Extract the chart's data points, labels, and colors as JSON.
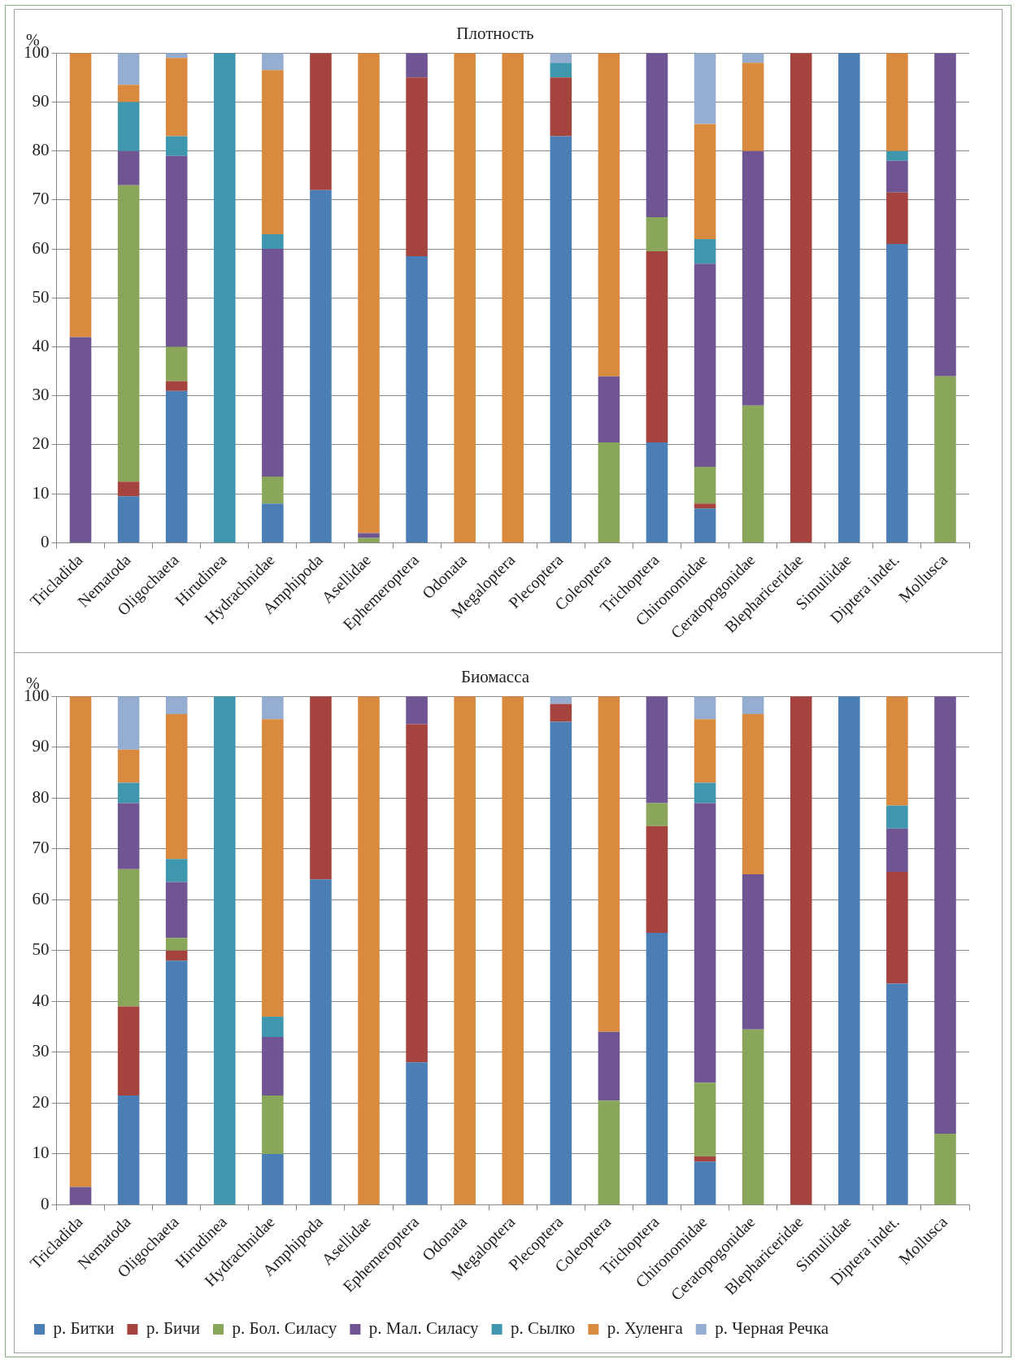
{
  "chart_data": [
    {
      "type": "bar",
      "title": "Плотность",
      "ylabel": "%",
      "stacked": true,
      "grid": "y",
      "legend": false,
      "ylim": [
        0,
        100
      ],
      "yticks": [
        0,
        10,
        20,
        30,
        40,
        50,
        60,
        70,
        80,
        90,
        100
      ],
      "categories": [
        "Tricladida",
        "Nematoda",
        "Oligochaeta",
        "Hirudinea",
        "Hydrachnidae",
        "Amphipoda",
        "Asellidae",
        "Ephemeroptera",
        "Odonata",
        "Megaloptera",
        "Plecoptera",
        "Coleoptera",
        "Trichoptera",
        "Chironomidae",
        "Ceratopogonidae",
        "Blephariceridae",
        "Simuliidae",
        "Diptera indet.",
        "Mollusca"
      ],
      "series": [
        {
          "color": "#4a7eb5",
          "values": [
            0,
            9.5,
            31,
            0,
            8,
            72,
            0,
            58.5,
            0,
            0,
            83,
            0,
            20.5,
            7,
            0,
            0,
            100,
            61,
            0
          ]
        },
        {
          "color": "#a5433f",
          "values": [
            0,
            3,
            2,
            0,
            0,
            28,
            0,
            36.5,
            0,
            0,
            12,
            0,
            39,
            1,
            0,
            100,
            0,
            10.5,
            0
          ]
        },
        {
          "color": "#8aa65a",
          "values": [
            0,
            60.5,
            7,
            0,
            5.5,
            0,
            1,
            0,
            0,
            0,
            0,
            20.5,
            7,
            7.5,
            28,
            0,
            0,
            0,
            34
          ]
        },
        {
          "color": "#6f5592",
          "values": [
            42,
            7,
            39,
            0,
            46.5,
            0,
            1,
            5,
            0,
            0,
            0,
            13.5,
            33.5,
            41.5,
            52,
            0,
            0,
            6.5,
            66
          ]
        },
        {
          "color": "#3e97ad",
          "values": [
            0,
            10,
            4,
            100,
            3,
            0,
            0,
            0,
            0,
            0,
            3,
            0,
            0,
            5,
            0,
            0,
            0,
            2,
            0
          ]
        },
        {
          "color": "#d98a3e",
          "values": [
            58,
            3.5,
            16,
            0,
            33.5,
            0,
            98,
            0,
            100,
            100,
            0,
            66,
            0,
            23.5,
            18,
            0,
            0,
            20,
            0
          ]
        },
        {
          "color": "#95add0",
          "values": [
            0,
            6.5,
            1,
            0,
            3.5,
            0,
            0,
            0,
            0,
            0,
            2,
            0,
            0,
            14.5,
            2,
            0,
            0,
            0,
            0
          ]
        }
      ]
    },
    {
      "type": "bar",
      "title": "Биомасса",
      "ylabel": "%",
      "stacked": true,
      "grid": "y",
      "legend": "bottom",
      "ylim": [
        0,
        100
      ],
      "yticks": [
        0,
        10,
        20,
        30,
        40,
        50,
        60,
        70,
        80,
        90,
        100
      ],
      "categories": [
        "Tricladida",
        "Nematoda",
        "Oligochaeta",
        "Hirudinea",
        "Hydrachnidae",
        "Amphipoda",
        "Asellidae",
        "Ephemeroptera",
        "Odonata",
        "Megaloptera",
        "Plecoptera",
        "Coleoptera",
        "Trichoptera",
        "Chironomidae",
        "Ceratopogonidae",
        "Blephariceridae",
        "Simuliidae",
        "Diptera indet.",
        "Mollusca"
      ],
      "series": [
        {
          "name": "р. Битки",
          "color": "#4a7eb5",
          "values": [
            0,
            21.5,
            48,
            0,
            10,
            64,
            0,
            28,
            0,
            0,
            95,
            0,
            53.5,
            8.5,
            0,
            0,
            100,
            43.5,
            0
          ]
        },
        {
          "name": "р. Бичи",
          "color": "#a5433f",
          "values": [
            0,
            17.5,
            2,
            0,
            0,
            36,
            0,
            66.5,
            0,
            0,
            3.5,
            0,
            21,
            1,
            0,
            100,
            0,
            22,
            0
          ]
        },
        {
          "name": "р. Бол. Силасу",
          "color": "#8aa65a",
          "values": [
            0,
            27,
            2.5,
            0,
            11.5,
            0,
            0,
            0,
            0,
            0,
            0,
            20.5,
            4.5,
            14.5,
            34.5,
            0,
            0,
            0,
            14
          ]
        },
        {
          "name": "р. Мал. Силасу",
          "color": "#6f5592",
          "values": [
            3.5,
            13,
            11,
            0,
            11.5,
            0,
            0,
            5.5,
            0,
            0,
            0,
            13.5,
            21,
            55,
            30.5,
            0,
            0,
            8.5,
            86
          ]
        },
        {
          "name": "р. Сылко",
          "color": "#3e97ad",
          "values": [
            0,
            4,
            4.5,
            100,
            4,
            0,
            0,
            0,
            0,
            0,
            0,
            0,
            0,
            4,
            0,
            0,
            0,
            4.5,
            0
          ]
        },
        {
          "name": "р. Хуленга",
          "color": "#d98a3e",
          "values": [
            96.5,
            6.5,
            28.5,
            0,
            58.5,
            0,
            100,
            0,
            100,
            100,
            0,
            66,
            0,
            12.5,
            31.5,
            0,
            0,
            21.5,
            0
          ]
        },
        {
          "name": "р. Черная Речка",
          "color": "#95add0",
          "values": [
            0,
            10.5,
            3.5,
            0,
            4.5,
            0,
            0,
            0,
            0,
            0,
            1.5,
            0,
            0,
            4.5,
            3.5,
            0,
            0,
            0,
            0
          ]
        }
      ]
    }
  ]
}
